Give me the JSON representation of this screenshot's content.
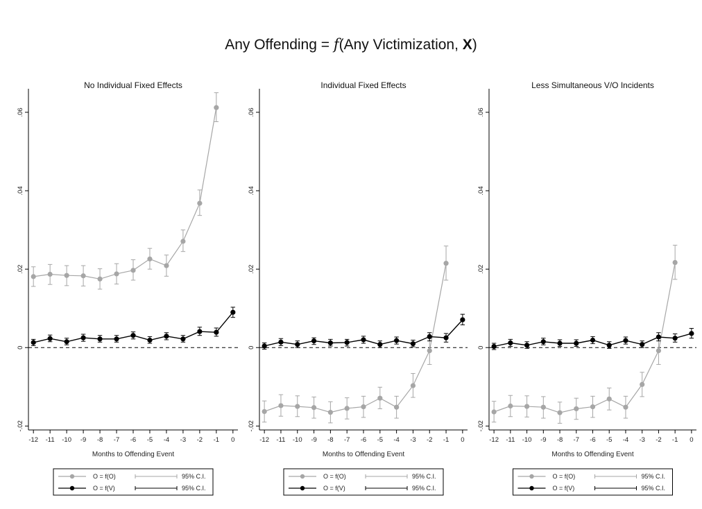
{
  "figure": {
    "title_parts": {
      "prefix": "Any Offending = ",
      "func": "f",
      "middle": "(Any Victimization,  ",
      "bold": "X",
      "suffix": ")"
    },
    "top_caption": ""
  },
  "chart_data": [
    {
      "type": "line",
      "title": "No Individual Fixed Effects",
      "xlabel": "Months to Offending Event",
      "ylabel": "",
      "x": [
        -12,
        -11,
        -10,
        -9,
        -8,
        -7,
        -6,
        -5,
        -4,
        -3,
        -2,
        -1,
        0
      ],
      "xlim": [
        -12.3,
        0.3
      ],
      "ylim": [
        -0.021,
        0.066
      ],
      "yticks": [
        -0.02,
        0,
        0.02,
        0.04,
        0.06
      ],
      "ytick_labels": [
        "-.02",
        "0",
        ".02",
        ".04",
        ".06"
      ],
      "xtick_labels": [
        "-12",
        "-11",
        "-10",
        "-9",
        "-8",
        "-7",
        "-6",
        "-5",
        "-4",
        "-3",
        "-2",
        "-1",
        "0"
      ],
      "reference_line": 0,
      "series": [
        {
          "name": "O = f(O)",
          "color": "#a6a6a6",
          "values": [
            0.0181,
            0.0187,
            0.0184,
            0.0183,
            0.0175,
            0.0188,
            0.0197,
            0.0226,
            0.0209,
            0.0271,
            0.0368,
            0.0612,
            null
          ],
          "ci_low": [
            0.0156,
            0.0161,
            0.0158,
            0.0157,
            0.0149,
            0.0162,
            0.0172,
            0.02,
            0.0182,
            0.0245,
            0.0337,
            0.0576,
            null
          ],
          "ci_high": [
            0.0206,
            0.0212,
            0.0209,
            0.0209,
            0.0201,
            0.0214,
            0.0224,
            0.0253,
            0.0236,
            0.03,
            0.0402,
            0.065,
            null
          ]
        },
        {
          "name": "O = f(V)",
          "color": "#000000",
          "values": [
            0.0013,
            0.0023,
            0.0015,
            0.0025,
            0.0022,
            0.0022,
            0.0031,
            0.0019,
            0.0029,
            0.0022,
            0.0041,
            0.0039,
            0.009
          ],
          "ci_low": [
            0.0005,
            0.0015,
            0.0007,
            0.0016,
            0.0014,
            0.0014,
            0.0022,
            0.0011,
            0.002,
            0.0014,
            0.0031,
            0.0029,
            0.0077
          ],
          "ci_high": [
            0.0021,
            0.0032,
            0.0024,
            0.0034,
            0.0031,
            0.0031,
            0.004,
            0.0028,
            0.0038,
            0.0031,
            0.0052,
            0.005,
            0.0103
          ]
        }
      ],
      "legend": {
        "placement": "bottom",
        "entries": [
          "O = f(O)",
          "95% C.I.",
          "O = f(V)",
          "95% C.I."
        ]
      }
    },
    {
      "type": "line",
      "title": "Individual Fixed Effects",
      "xlabel": "Months to Offending Event",
      "ylabel": "",
      "x": [
        -12,
        -11,
        -10,
        -9,
        -8,
        -7,
        -6,
        -5,
        -4,
        -3,
        -2,
        -1,
        0
      ],
      "xlim": [
        -12.3,
        0.3
      ],
      "ylim": [
        -0.021,
        0.066
      ],
      "yticks": [
        -0.02,
        0,
        0.02,
        0.04,
        0.06
      ],
      "ytick_labels": [
        "-.02",
        "0",
        ".02",
        ".04",
        ".06"
      ],
      "xtick_labels": [
        "-12",
        "-11",
        "-10",
        "-9",
        "-8",
        "-7",
        "-6",
        "-5",
        "-4",
        "-3",
        "-2",
        "-1",
        "0"
      ],
      "reference_line": 0,
      "series": [
        {
          "name": "O = f(O)",
          "color": "#a6a6a6",
          "values": [
            -0.0163,
            -0.0148,
            -0.015,
            -0.0153,
            -0.0165,
            -0.0155,
            -0.0151,
            -0.0129,
            -0.0152,
            -0.0097,
            -0.0008,
            0.0215,
            null
          ],
          "ci_low": [
            -0.019,
            -0.0175,
            -0.0176,
            -0.018,
            -0.0192,
            -0.0182,
            -0.0178,
            -0.0156,
            -0.018,
            -0.0127,
            -0.0043,
            0.0172,
            null
          ],
          "ci_high": [
            -0.0136,
            -0.012,
            -0.0123,
            -0.0126,
            -0.0138,
            -0.0128,
            -0.0124,
            -0.0101,
            -0.0124,
            -0.0066,
            0.0028,
            0.0259,
            null
          ]
        },
        {
          "name": "O = f(V)",
          "color": "#000000",
          "values": [
            0.0004,
            0.0014,
            0.0008,
            0.0017,
            0.0012,
            0.0013,
            0.002,
            0.0008,
            0.0018,
            0.001,
            0.0028,
            0.0025,
            0.0071
          ],
          "ci_low": [
            -0.0004,
            0.0005,
            0.0,
            0.0008,
            0.0004,
            0.0004,
            0.0011,
            0.0,
            0.0009,
            0.0002,
            0.0017,
            0.0014,
            0.0058
          ],
          "ci_high": [
            0.0012,
            0.0023,
            0.0017,
            0.0025,
            0.0021,
            0.0021,
            0.0029,
            0.0017,
            0.0027,
            0.0019,
            0.0038,
            0.0036,
            0.0085
          ]
        }
      ],
      "legend": {
        "placement": "bottom",
        "entries": [
          "O = f(O)",
          "95% C.I.",
          "O = f(V)",
          "95% C.I."
        ]
      }
    },
    {
      "type": "line",
      "title": "Less Simultaneous V/O Incidents",
      "xlabel": "Months to Offending Event",
      "ylabel": "",
      "x": [
        -12,
        -11,
        -10,
        -9,
        -8,
        -7,
        -6,
        -5,
        -4,
        -3,
        -2,
        -1,
        0
      ],
      "xlim": [
        -12.3,
        0.3
      ],
      "ylim": [
        -0.021,
        0.066
      ],
      "yticks": [
        -0.02,
        0,
        0.02,
        0.04,
        0.06
      ],
      "ytick_labels": [
        "-.02",
        "0",
        ".02",
        ".04",
        ".06"
      ],
      "xtick_labels": [
        "-12",
        "-11",
        "-10",
        "-9",
        "-8",
        "-7",
        "-6",
        "-5",
        "-4",
        "-3",
        "-2",
        "-1",
        "0"
      ],
      "reference_line": 0,
      "series": [
        {
          "name": "O = f(O)",
          "color": "#a6a6a6",
          "values": [
            -0.0164,
            -0.0149,
            -0.015,
            -0.0152,
            -0.0166,
            -0.0156,
            -0.0151,
            -0.0131,
            -0.0152,
            -0.0094,
            -0.0008,
            0.0217,
            null
          ],
          "ci_low": [
            -0.019,
            -0.0176,
            -0.0177,
            -0.018,
            -0.0193,
            -0.0183,
            -0.0178,
            -0.0159,
            -0.018,
            -0.0125,
            -0.0043,
            0.0174,
            null
          ],
          "ci_high": [
            -0.0137,
            -0.0122,
            -0.0123,
            -0.0125,
            -0.0139,
            -0.0129,
            -0.0124,
            -0.0103,
            -0.0124,
            -0.0063,
            0.0028,
            0.0261,
            null
          ]
        },
        {
          "name": "O = f(V)",
          "color": "#000000",
          "values": [
            0.0003,
            0.0012,
            0.0006,
            0.0015,
            0.0011,
            0.0011,
            0.0019,
            0.0006,
            0.0018,
            0.0008,
            0.0027,
            0.0024,
            0.0036
          ],
          "ci_low": [
            -0.0005,
            0.0003,
            -0.0002,
            0.0007,
            0.0003,
            0.0003,
            0.001,
            -0.0002,
            0.0009,
            0.0,
            0.0017,
            0.0014,
            0.0024
          ],
          "ci_high": [
            0.0011,
            0.0021,
            0.0015,
            0.0024,
            0.002,
            0.002,
            0.0028,
            0.0015,
            0.0027,
            0.0017,
            0.0038,
            0.0035,
            0.0049
          ]
        }
      ],
      "legend": {
        "placement": "bottom",
        "entries": [
          "O = f(O)",
          "95% C.I.",
          "O = f(V)",
          "95% C.I."
        ]
      }
    }
  ]
}
